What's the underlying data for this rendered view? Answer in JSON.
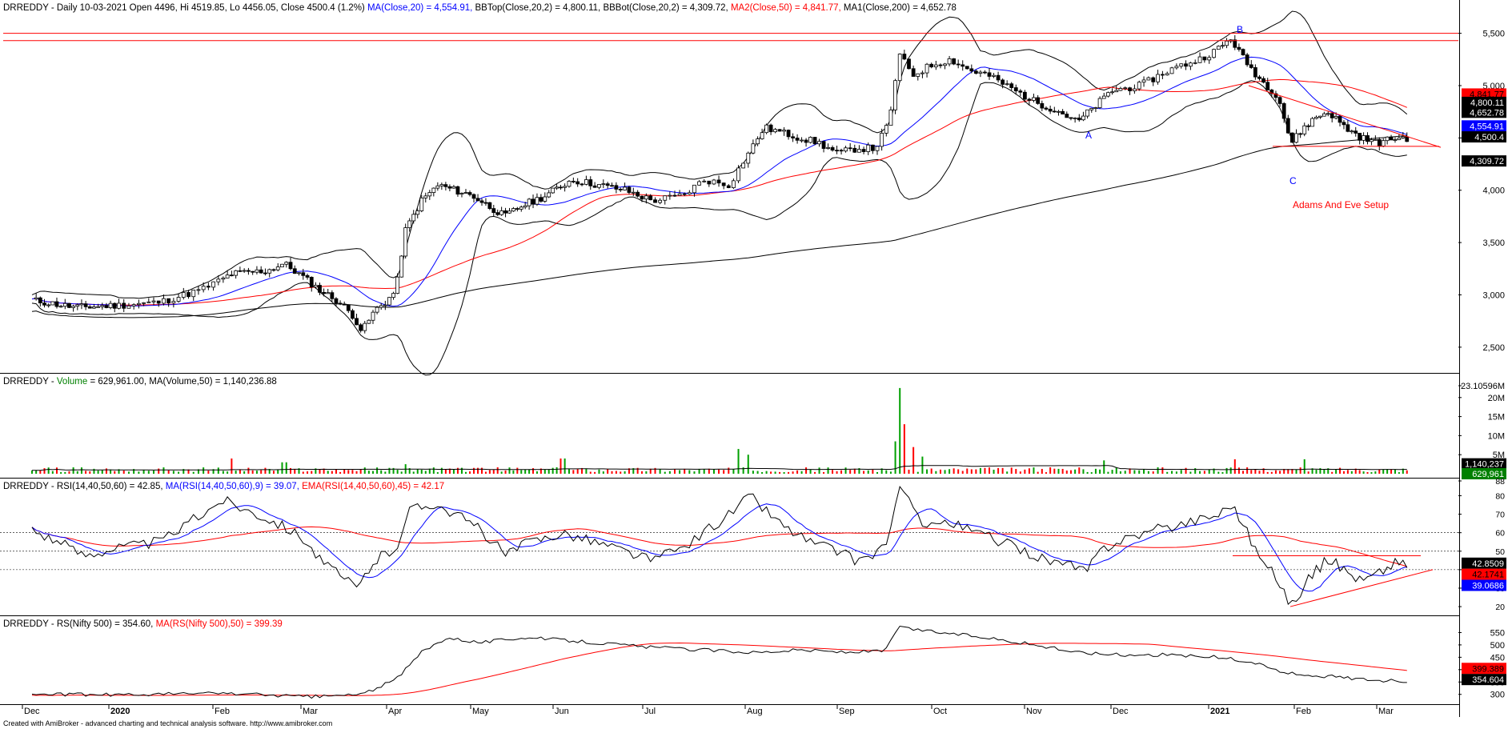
{
  "colors": {
    "black": "#000000",
    "blue": "#0000ff",
    "red": "#ff0000",
    "green": "#008000",
    "volume_up": "#00a000",
    "volume_down": "#ff0000",
    "grid": "#000000",
    "background": "#ffffff"
  },
  "footer": {
    "credit": "Created with AmiBroker - advanced charting and technical analysis software. http://www.amibroker.com"
  },
  "x_axis": {
    "labels": [
      "Dec",
      "2020",
      "Feb",
      "Mar",
      "Apr",
      "May",
      "Jun",
      "Jul",
      "Aug",
      "Sep",
      "Oct",
      "Nov",
      "Dec",
      "2021",
      "Feb",
      "Mar"
    ],
    "bold_labels": [
      "2020",
      "2021"
    ]
  },
  "panels": {
    "price": {
      "title_parts": [
        {
          "text": "DRREDDY - Daily 10-03-2021 Open 4496, Hi 4519.85, Lo 4456.05, Close 4500.4 (1.2%) ",
          "color": "#000000"
        },
        {
          "text": "MA(Close,20) = 4,554.91, ",
          "color": "#0000ff"
        },
        {
          "text": "BBTop(Close,20,2) = 4,800.11, BBBot(Close,20,2) = 4,309.72, ",
          "color": "#000000"
        },
        {
          "text": "MA2(Close,50) = 4,841.77, ",
          "color": "#ff0000"
        },
        {
          "text": "MA1(Close,200) = 4,652.78",
          "color": "#000000"
        }
      ],
      "y_ticks": [
        "5,500",
        "5,000",
        "4,500",
        "4,000",
        "3,500",
        "3,000",
        "2,500"
      ],
      "value_tags": [
        {
          "text": "4,841.77",
          "bg": "#ff0000",
          "fg": "#000000"
        },
        {
          "text": "4,800.11",
          "bg": "#000000",
          "fg": "#ffffff"
        },
        {
          "text": "4,652.78",
          "bg": "#000000",
          "fg": "#ffffff"
        },
        {
          "text": "4,554.91",
          "bg": "#0000ff",
          "fg": "#ffffff"
        },
        {
          "text": "4,500.4",
          "bg": "#000000",
          "fg": "#ffffff"
        },
        {
          "text": "4,309.72",
          "bg": "#000000",
          "fg": "#ffffff"
        }
      ],
      "annotations": {
        "a": "A",
        "b": "B",
        "c": "C",
        "setup": "Adams And Eve Setup"
      }
    },
    "volume": {
      "title_parts": [
        {
          "text": "DRREDDY - ",
          "color": "#000000"
        },
        {
          "text": "Volume",
          "color": "#008000"
        },
        {
          "text": " = 629,961.00, MA(Volume,50) = 1,140,236.88",
          "color": "#000000"
        }
      ],
      "y_ticks": [
        "23.10596M",
        "20M",
        "15M",
        "10M",
        "5M"
      ],
      "value_tags": [
        {
          "text": "1,140,237",
          "bg": "#000000",
          "fg": "#ffffff"
        },
        {
          "text": "629,961",
          "bg": "#008000",
          "fg": "#ffffff"
        }
      ]
    },
    "rsi": {
      "title_parts": [
        {
          "text": "DRREDDY - RSI(14,40,50,60) = 42.85, ",
          "color": "#000000"
        },
        {
          "text": "MA(RSI(14,40,50,60),9) = 39.07, ",
          "color": "#0000ff"
        },
        {
          "text": "EMA(RSI(14,40,50,60),45) = 42.17",
          "color": "#ff0000"
        }
      ],
      "y_ticks": [
        "88",
        "80",
        "70",
        "60",
        "50",
        "40",
        "30",
        "20"
      ],
      "value_tags": [
        {
          "text": "42.8509",
          "bg": "#000000",
          "fg": "#ffffff"
        },
        {
          "text": "42.1741",
          "bg": "#ff0000",
          "fg": "#000000"
        },
        {
          "text": "39.0686",
          "bg": "#0000ff",
          "fg": "#ffffff"
        }
      ]
    },
    "rs": {
      "title_parts": [
        {
          "text": "DRREDDY - RS(Nifty 500) = 354.60, ",
          "color": "#000000"
        },
        {
          "text": "MA(RS(Nifty 500),50) = 399.39",
          "color": "#ff0000"
        }
      ],
      "y_ticks": [
        "550",
        "500",
        "450",
        "400",
        "350",
        "300"
      ],
      "value_tags": [
        {
          "text": "399.389",
          "bg": "#ff0000",
          "fg": "#000000"
        },
        {
          "text": "354.604",
          "bg": "#000000",
          "fg": "#ffffff"
        }
      ]
    }
  },
  "chart_data": [
    {
      "type": "candlestick",
      "title": "DRREDDY - Daily 10-03-2021 Open 4496, Hi 4519.85, Lo 4456.05, Close 4500.4 (1.2%)",
      "ylim": [
        2300,
        5650
      ],
      "y_ticks": [
        5500,
        5000,
        4500,
        4000,
        3500,
        3000,
        2500
      ],
      "last_bar": {
        "date": "10-03-2021",
        "open": 4496,
        "high": 4519.85,
        "low": 4456.05,
        "close": 4500.4
      },
      "close_path": [
        {
          "m": 0.0,
          "v": 2950
        },
        {
          "m": 0.5,
          "v": 2880
        },
        {
          "m": 1.0,
          "v": 2900
        },
        {
          "m": 1.4,
          "v": 2930
        },
        {
          "m": 1.8,
          "v": 3050
        },
        {
          "m": 2.1,
          "v": 3200
        },
        {
          "m": 2.5,
          "v": 3230
        },
        {
          "m": 2.7,
          "v": 3300
        },
        {
          "m": 2.9,
          "v": 3180
        },
        {
          "m": 3.1,
          "v": 3050
        },
        {
          "m": 3.3,
          "v": 2950
        },
        {
          "m": 3.5,
          "v": 2800
        },
        {
          "m": 3.6,
          "v": 2650
        },
        {
          "m": 3.75,
          "v": 2850
        },
        {
          "m": 3.9,
          "v": 2950
        },
        {
          "m": 4.0,
          "v": 3050
        },
        {
          "m": 4.1,
          "v": 3600
        },
        {
          "m": 4.3,
          "v": 3900
        },
        {
          "m": 4.5,
          "v": 4050
        },
        {
          "m": 4.7,
          "v": 4000
        },
        {
          "m": 4.9,
          "v": 3950
        },
        {
          "m": 5.1,
          "v": 3850
        },
        {
          "m": 5.3,
          "v": 3750
        },
        {
          "m": 5.5,
          "v": 3850
        },
        {
          "m": 5.8,
          "v": 3950
        },
        {
          "m": 6.1,
          "v": 4100
        },
        {
          "m": 6.4,
          "v": 4050
        },
        {
          "m": 6.7,
          "v": 4000
        },
        {
          "m": 7.0,
          "v": 3900
        },
        {
          "m": 7.3,
          "v": 3950
        },
        {
          "m": 7.5,
          "v": 4100
        },
        {
          "m": 7.75,
          "v": 4050
        },
        {
          "m": 7.9,
          "v": 4300
        },
        {
          "m": 8.1,
          "v": 4600
        },
        {
          "m": 8.3,
          "v": 4550
        },
        {
          "m": 8.5,
          "v": 4500
        },
        {
          "m": 8.7,
          "v": 4450
        },
        {
          "m": 8.9,
          "v": 4350
        },
        {
          "m": 9.1,
          "v": 4400
        },
        {
          "m": 9.3,
          "v": 4400
        },
        {
          "m": 9.45,
          "v": 4650
        },
        {
          "m": 9.55,
          "v": 5300
        },
        {
          "m": 9.7,
          "v": 5100
        },
        {
          "m": 9.9,
          "v": 5200
        },
        {
          "m": 10.1,
          "v": 5250
        },
        {
          "m": 10.3,
          "v": 5150
        },
        {
          "m": 10.5,
          "v": 5100
        },
        {
          "m": 10.8,
          "v": 4950
        },
        {
          "m": 11.0,
          "v": 4850
        },
        {
          "m": 11.3,
          "v": 4750
        },
        {
          "m": 11.5,
          "v": 4650
        },
        {
          "m": 11.7,
          "v": 4800
        },
        {
          "m": 11.9,
          "v": 4950
        },
        {
          "m": 12.2,
          "v": 5000
        },
        {
          "m": 12.5,
          "v": 5150
        },
        {
          "m": 12.8,
          "v": 5250
        },
        {
          "m": 13.0,
          "v": 5350
        },
        {
          "m": 13.15,
          "v": 5450
        },
        {
          "m": 13.3,
          "v": 5250
        },
        {
          "m": 13.5,
          "v": 5050
        },
        {
          "m": 13.7,
          "v": 4900
        },
        {
          "m": 13.85,
          "v": 4450
        },
        {
          "m": 14.0,
          "v": 4600
        },
        {
          "m": 14.15,
          "v": 4700
        },
        {
          "m": 14.3,
          "v": 4750
        },
        {
          "m": 14.5,
          "v": 4600
        },
        {
          "m": 14.7,
          "v": 4500
        },
        {
          "m": 14.9,
          "v": 4450
        },
        {
          "m": 15.1,
          "v": 4500
        },
        {
          "m": 15.25,
          "v": 4500
        }
      ],
      "overlays": [
        {
          "name": "MA(Close,20)",
          "last": 4554.91,
          "color": "#0000ff"
        },
        {
          "name": "BBTop(Close,20,2)",
          "last": 4800.11,
          "color": "#000000"
        },
        {
          "name": "BBBot(Close,20,2)",
          "last": 4309.72,
          "color": "#000000"
        },
        {
          "name": "MA2(Close,50)",
          "last": 4841.77,
          "color": "#ff0000"
        },
        {
          "name": "MA1(Close,200)",
          "last": 4652.78,
          "color": "#000000"
        }
      ],
      "horizontal_lines": [
        5500,
        5430,
        4420
      ],
      "annotation_labels": [
        "A",
        "B",
        "C",
        "Adams And Eve Setup"
      ]
    },
    {
      "type": "bar",
      "title": "DRREDDY - Volume = 629,961.00, MA(Volume,50) = 1,140,236.88",
      "ylim": [
        0,
        23105960
      ],
      "last": 629961,
      "ma50_last": 1140236.88,
      "spikes": [
        {
          "m": 2.1,
          "v": 4000000
        },
        {
          "m": 2.7,
          "v": 3000000
        },
        {
          "m": 4.1,
          "v": 2500000
        },
        {
          "m": 6.0,
          "v": 4000000
        },
        {
          "m": 7.85,
          "v": 6500000
        },
        {
          "m": 7.95,
          "v": 5000000
        },
        {
          "m": 9.5,
          "v": 8500000
        },
        {
          "m": 9.55,
          "v": 22500000
        },
        {
          "m": 9.6,
          "v": 13000000
        },
        {
          "m": 9.7,
          "v": 7000000
        },
        {
          "m": 9.8,
          "v": 4500000
        },
        {
          "m": 11.8,
          "v": 3500000
        },
        {
          "m": 13.2,
          "v": 3800000
        },
        {
          "m": 14.0,
          "v": 3800000
        }
      ]
    },
    {
      "type": "line",
      "title": "DRREDDY - RSI(14,40,50,60) = 42.85",
      "ylim": [
        17,
        88
      ],
      "guides": [
        40,
        50,
        60
      ],
      "series": [
        {
          "name": "RSI(14,40,50,60)",
          "last": 42.85,
          "color": "#000000"
        },
        {
          "name": "MA(RSI(14,40,50,60),9)",
          "last": 39.07,
          "color": "#0000ff"
        },
        {
          "name": "EMA(RSI(14,40,50,60),45)",
          "last": 42.17,
          "color": "#ff0000"
        }
      ],
      "rsi_path": [
        {
          "m": 0.0,
          "v": 62
        },
        {
          "m": 0.3,
          "v": 55
        },
        {
          "m": 0.6,
          "v": 48
        },
        {
          "m": 1.0,
          "v": 52
        },
        {
          "m": 1.4,
          "v": 55
        },
        {
          "m": 1.8,
          "v": 70
        },
        {
          "m": 2.0,
          "v": 78
        },
        {
          "m": 2.3,
          "v": 72
        },
        {
          "m": 2.6,
          "v": 66
        },
        {
          "m": 2.9,
          "v": 58
        },
        {
          "m": 3.1,
          "v": 46
        },
        {
          "m": 3.35,
          "v": 36
        },
        {
          "m": 3.55,
          "v": 30
        },
        {
          "m": 3.75,
          "v": 45
        },
        {
          "m": 4.0,
          "v": 52
        },
        {
          "m": 4.15,
          "v": 72
        },
        {
          "m": 4.45,
          "v": 76
        },
        {
          "m": 4.7,
          "v": 70
        },
        {
          "m": 5.0,
          "v": 62
        },
        {
          "m": 5.3,
          "v": 48
        },
        {
          "m": 5.6,
          "v": 55
        },
        {
          "m": 6.0,
          "v": 60
        },
        {
          "m": 6.3,
          "v": 56
        },
        {
          "m": 6.7,
          "v": 50
        },
        {
          "m": 7.0,
          "v": 45
        },
        {
          "m": 7.3,
          "v": 52
        },
        {
          "m": 7.5,
          "v": 60
        },
        {
          "m": 7.75,
          "v": 70
        },
        {
          "m": 7.95,
          "v": 80
        },
        {
          "m": 8.3,
          "v": 64
        },
        {
          "m": 8.6,
          "v": 55
        },
        {
          "m": 8.9,
          "v": 50
        },
        {
          "m": 9.1,
          "v": 45
        },
        {
          "m": 9.3,
          "v": 48
        },
        {
          "m": 9.45,
          "v": 58
        },
        {
          "m": 9.55,
          "v": 84
        },
        {
          "m": 9.8,
          "v": 66
        },
        {
          "m": 10.1,
          "v": 65
        },
        {
          "m": 10.5,
          "v": 58
        },
        {
          "m": 10.8,
          "v": 52
        },
        {
          "m": 11.1,
          "v": 46
        },
        {
          "m": 11.4,
          "v": 42
        },
        {
          "m": 11.6,
          "v": 39
        },
        {
          "m": 11.8,
          "v": 52
        },
        {
          "m": 12.1,
          "v": 58
        },
        {
          "m": 12.4,
          "v": 62
        },
        {
          "m": 12.7,
          "v": 66
        },
        {
          "m": 13.0,
          "v": 70
        },
        {
          "m": 13.15,
          "v": 76
        },
        {
          "m": 13.3,
          "v": 64
        },
        {
          "m": 13.5,
          "v": 45
        },
        {
          "m": 13.7,
          "v": 35
        },
        {
          "m": 13.85,
          "v": 20
        },
        {
          "m": 14.05,
          "v": 35
        },
        {
          "m": 14.3,
          "v": 46
        },
        {
          "m": 14.5,
          "v": 40
        },
        {
          "m": 14.7,
          "v": 34
        },
        {
          "m": 14.9,
          "v": 38
        },
        {
          "m": 15.1,
          "v": 44
        },
        {
          "m": 15.25,
          "v": 42.85
        }
      ]
    },
    {
      "type": "line",
      "title": "DRREDDY - RS(Nifty 500) = 354.60",
      "ylim": [
        270,
        600
      ],
      "series": [
        {
          "name": "RS(Nifty 500)",
          "last": 354.6,
          "color": "#000000"
        },
        {
          "name": "MA(RS(Nifty 500),50)",
          "last": 399.39,
          "color": "#ff0000"
        }
      ],
      "rs_path": [
        {
          "m": 0.0,
          "v": 300
        },
        {
          "m": 1.0,
          "v": 298
        },
        {
          "m": 2.0,
          "v": 305
        },
        {
          "m": 3.0,
          "v": 290
        },
        {
          "m": 3.6,
          "v": 300
        },
        {
          "m": 4.0,
          "v": 360
        },
        {
          "m": 4.3,
          "v": 470
        },
        {
          "m": 4.6,
          "v": 530
        },
        {
          "m": 5.0,
          "v": 510
        },
        {
          "m": 5.5,
          "v": 530
        },
        {
          "m": 6.0,
          "v": 520
        },
        {
          "m": 6.5,
          "v": 505
        },
        {
          "m": 7.0,
          "v": 490
        },
        {
          "m": 7.5,
          "v": 480
        },
        {
          "m": 8.0,
          "v": 470
        },
        {
          "m": 8.5,
          "v": 480
        },
        {
          "m": 9.0,
          "v": 470
        },
        {
          "m": 9.4,
          "v": 475
        },
        {
          "m": 9.55,
          "v": 570
        },
        {
          "m": 10.0,
          "v": 550
        },
        {
          "m": 10.5,
          "v": 530
        },
        {
          "m": 11.0,
          "v": 500
        },
        {
          "m": 11.5,
          "v": 470
        },
        {
          "m": 12.0,
          "v": 460
        },
        {
          "m": 12.5,
          "v": 460
        },
        {
          "m": 13.0,
          "v": 450
        },
        {
          "m": 13.4,
          "v": 430
        },
        {
          "m": 13.8,
          "v": 385
        },
        {
          "m": 14.2,
          "v": 375
        },
        {
          "m": 14.6,
          "v": 365
        },
        {
          "m": 15.0,
          "v": 355
        },
        {
          "m": 15.25,
          "v": 354.6
        }
      ]
    }
  ]
}
